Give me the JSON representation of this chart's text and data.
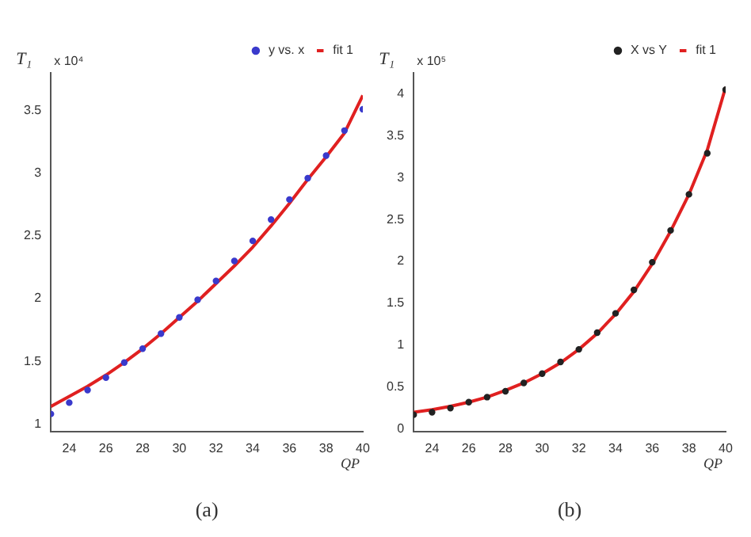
{
  "chart_data": [
    {
      "type": "scatter",
      "ylabel": "T₁",
      "xlabel": "QP",
      "annotations": [
        "x 10⁴",
        "(a)"
      ],
      "xlim": [
        23,
        40
      ],
      "xticks": [
        24,
        26,
        28,
        30,
        32,
        34,
        36,
        38,
        40
      ],
      "ylim": [
        0.94,
        3.8
      ],
      "yticks": [
        1,
        1.5,
        2,
        2.5,
        3,
        3.5
      ],
      "legend": "top right",
      "grid": false,
      "series": [
        {
          "name": "y vs. x",
          "marker": "circle",
          "color": "#3a3acc",
          "x": [
            23,
            24,
            25,
            26,
            27,
            28,
            29,
            30,
            31,
            32,
            33,
            34,
            35,
            36,
            37,
            38,
            39,
            40
          ],
          "values": [
            1.08,
            1.17,
            1.27,
            1.37,
            1.49,
            1.6,
            1.72,
            1.85,
            1.99,
            2.14,
            2.3,
            2.46,
            2.63,
            2.79,
            2.96,
            3.14,
            3.34,
            3.51
          ]
        },
        {
          "name": "fit 1",
          "type": "line",
          "marker": "none",
          "color": "#e02020",
          "x": [
            23,
            24,
            25,
            26,
            27,
            28,
            29,
            30,
            31,
            32,
            33,
            34,
            35,
            36,
            37,
            38,
            39,
            40
          ],
          "values": [
            1.14,
            1.22,
            1.3,
            1.39,
            1.49,
            1.6,
            1.72,
            1.85,
            1.98,
            2.12,
            2.26,
            2.41,
            2.58,
            2.76,
            2.95,
            3.13,
            3.32,
            3.62
          ]
        }
      ]
    },
    {
      "type": "scatter",
      "ylabel": "T₁",
      "xlabel": "QP",
      "annotations": [
        "x 10⁵",
        "(b)"
      ],
      "xlim": [
        23,
        40
      ],
      "xticks": [
        24,
        26,
        28,
        30,
        32,
        34,
        36,
        38,
        40
      ],
      "ylim": [
        -0.03,
        4.25
      ],
      "yticks": [
        0,
        0.5,
        1,
        1.5,
        2,
        2.5,
        3,
        3.5,
        4
      ],
      "legend": "top right",
      "grid": false,
      "series": [
        {
          "name": "X vs Y",
          "marker": "circle",
          "color": "#222222",
          "x": [
            23,
            24,
            25,
            26,
            27,
            28,
            29,
            30,
            31,
            32,
            33,
            34,
            35,
            36,
            37,
            38,
            39,
            40
          ],
          "values": [
            0.17,
            0.2,
            0.25,
            0.32,
            0.38,
            0.45,
            0.55,
            0.66,
            0.8,
            0.95,
            1.15,
            1.38,
            1.66,
            1.99,
            2.37,
            2.8,
            3.29,
            4.05
          ]
        },
        {
          "name": "fit 1",
          "type": "line",
          "marker": "none",
          "color": "#e02020",
          "x": [
            23,
            24,
            25,
            26,
            27,
            28,
            29,
            30,
            31,
            32,
            33,
            34,
            35,
            36,
            37,
            38,
            39,
            40
          ],
          "values": [
            0.2,
            0.23,
            0.27,
            0.32,
            0.38,
            0.46,
            0.55,
            0.66,
            0.79,
            0.95,
            1.14,
            1.37,
            1.64,
            1.97,
            2.36,
            2.8,
            3.33,
            4.08
          ]
        }
      ]
    }
  ]
}
